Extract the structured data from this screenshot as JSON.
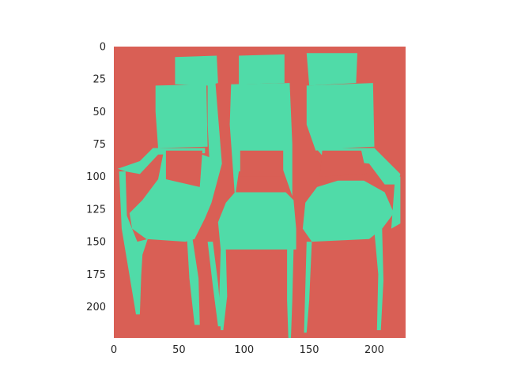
{
  "chart_data": {
    "type": "heatmap",
    "title": "",
    "xlabel": "",
    "ylabel": "",
    "xlim": [
      0,
      224
    ],
    "ylim": [
      224,
      0
    ],
    "x_ticks": [
      0,
      50,
      100,
      150,
      200
    ],
    "y_ticks": [
      0,
      25,
      50,
      75,
      100,
      125,
      150,
      175,
      200
    ],
    "grid": false,
    "colors": {
      "background_class": "#d95f55",
      "foreground_class": "#50dba8"
    },
    "foreground_regions": [
      {
        "name": "left-chair-back-top",
        "points": [
          [
            47,
            8
          ],
          [
            79,
            7
          ],
          [
            80,
            28
          ],
          [
            72,
            30
          ],
          [
            47,
            29
          ]
        ]
      },
      {
        "name": "left-chair-back",
        "points": [
          [
            32,
            30
          ],
          [
            71,
            29
          ],
          [
            72,
            77
          ],
          [
            34,
            78
          ],
          [
            32,
            50
          ]
        ]
      },
      {
        "name": "left-chair-stile",
        "points": [
          [
            72,
            28
          ],
          [
            78,
            28
          ],
          [
            83,
            90
          ],
          [
            79,
            105
          ],
          [
            75,
            120
          ],
          [
            72,
            60
          ]
        ]
      },
      {
        "name": "left-chair-arm",
        "points": [
          [
            3,
            94
          ],
          [
            20,
            88
          ],
          [
            30,
            78
          ],
          [
            70,
            78
          ],
          [
            70,
            82
          ],
          [
            34,
            83
          ],
          [
            20,
            98
          ],
          [
            9,
            96
          ]
        ]
      },
      {
        "name": "left-chair-seat",
        "points": [
          [
            12,
            128
          ],
          [
            22,
            118
          ],
          [
            34,
            102
          ],
          [
            38,
            82
          ],
          [
            54,
            78
          ],
          [
            76,
            86
          ],
          [
            75,
            120
          ],
          [
            70,
            132
          ],
          [
            62,
            148
          ],
          [
            55,
            150
          ],
          [
            25,
            148
          ],
          [
            14,
            140
          ]
        ]
      },
      {
        "name": "left-chair-front-leg-l",
        "points": [
          [
            4,
            96
          ],
          [
            9,
            96
          ],
          [
            10,
            130
          ],
          [
            18,
            150
          ],
          [
            26,
            148
          ],
          [
            22,
            160
          ],
          [
            21,
            176
          ],
          [
            20,
            206
          ],
          [
            17,
            206
          ],
          [
            12,
            176
          ],
          [
            6,
            140
          ]
        ]
      },
      {
        "name": "left-chair-front-leg-r",
        "points": [
          [
            56,
            145
          ],
          [
            60,
            145
          ],
          [
            65,
            178
          ],
          [
            66,
            214
          ],
          [
            62,
            214
          ],
          [
            58,
            178
          ]
        ]
      },
      {
        "name": "left-chair-rear-leg",
        "points": [
          [
            72,
            150
          ],
          [
            76,
            150
          ],
          [
            80,
            182
          ],
          [
            83,
            215
          ],
          [
            80,
            215
          ],
          [
            76,
            184
          ]
        ]
      },
      {
        "name": "middle-chair-back-top",
        "points": [
          [
            96,
            7
          ],
          [
            131,
            6
          ],
          [
            131,
            28
          ],
          [
            96,
            29
          ]
        ]
      },
      {
        "name": "middle-chair-back",
        "points": [
          [
            90,
            29
          ],
          [
            135,
            28
          ],
          [
            137,
            75
          ],
          [
            137,
            115
          ],
          [
            130,
            95
          ],
          [
            96,
            96
          ],
          [
            93,
            116
          ],
          [
            89,
            60
          ]
        ]
      },
      {
        "name": "middle-chair-seat",
        "points": [
          [
            86,
            120
          ],
          [
            93,
            112
          ],
          [
            132,
            112
          ],
          [
            138,
            118
          ],
          [
            140,
            140
          ],
          [
            140,
            156
          ],
          [
            82,
            156
          ],
          [
            80,
            135
          ]
        ]
      },
      {
        "name": "middle-chair-front-leg-l",
        "points": [
          [
            82,
            156
          ],
          [
            86,
            156
          ],
          [
            87,
            192
          ],
          [
            84,
            218
          ],
          [
            82,
            218
          ],
          [
            81,
            192
          ]
        ]
      },
      {
        "name": "middle-chair-front-leg-r",
        "points": [
          [
            133,
            156
          ],
          [
            138,
            156
          ],
          [
            137,
            195
          ],
          [
            136,
            224
          ],
          [
            134,
            224
          ],
          [
            133,
            195
          ]
        ]
      },
      {
        "name": "right-chair-back-top",
        "points": [
          [
            148,
            5
          ],
          [
            187,
            5
          ],
          [
            186,
            28
          ],
          [
            150,
            30
          ]
        ]
      },
      {
        "name": "right-chair-back",
        "points": [
          [
            148,
            30
          ],
          [
            199,
            28
          ],
          [
            200,
            77
          ],
          [
            175,
            78
          ],
          [
            155,
            80
          ],
          [
            148,
            60
          ]
        ]
      },
      {
        "name": "right-chair-arm",
        "points": [
          [
            155,
            78
          ],
          [
            200,
            78
          ],
          [
            220,
            98
          ],
          [
            218,
            106
          ],
          [
            208,
            106
          ],
          [
            196,
            90
          ],
          [
            162,
            86
          ]
        ]
      },
      {
        "name": "right-chair-seat",
        "points": [
          [
            147,
            120
          ],
          [
            156,
            108
          ],
          [
            172,
            103
          ],
          [
            192,
            103
          ],
          [
            208,
            112
          ],
          [
            215,
            128
          ],
          [
            206,
            140
          ],
          [
            196,
            148
          ],
          [
            152,
            150
          ],
          [
            145,
            140
          ]
        ]
      },
      {
        "name": "right-chair-front-leg-l",
        "points": [
          [
            148,
            150
          ],
          [
            152,
            150
          ],
          [
            150,
            195
          ],
          [
            148,
            220
          ],
          [
            146,
            220
          ],
          [
            147,
            185
          ]
        ]
      },
      {
        "name": "right-chair-front-leg-r",
        "points": [
          [
            200,
            142
          ],
          [
            206,
            140
          ],
          [
            207,
            180
          ],
          [
            205,
            218
          ],
          [
            202,
            218
          ],
          [
            203,
            175
          ]
        ]
      },
      {
        "name": "right-chair-arm-post",
        "points": [
          [
            216,
            100
          ],
          [
            220,
            100
          ],
          [
            220,
            136
          ],
          [
            213,
            140
          ]
        ]
      }
    ],
    "background_regions": [
      {
        "name": "left-back-gap",
        "points": [
          [
            40,
            80
          ],
          [
            68,
            80
          ],
          [
            66,
            108
          ],
          [
            40,
            102
          ]
        ]
      },
      {
        "name": "middle-back-slot",
        "points": [
          [
            97,
            80
          ],
          [
            130,
            80
          ],
          [
            130,
            100
          ],
          [
            97,
            100
          ]
        ]
      },
      {
        "name": "right-back-gap",
        "points": [
          [
            160,
            80
          ],
          [
            190,
            80
          ],
          [
            194,
            98
          ],
          [
            158,
            100
          ]
        ]
      }
    ]
  }
}
